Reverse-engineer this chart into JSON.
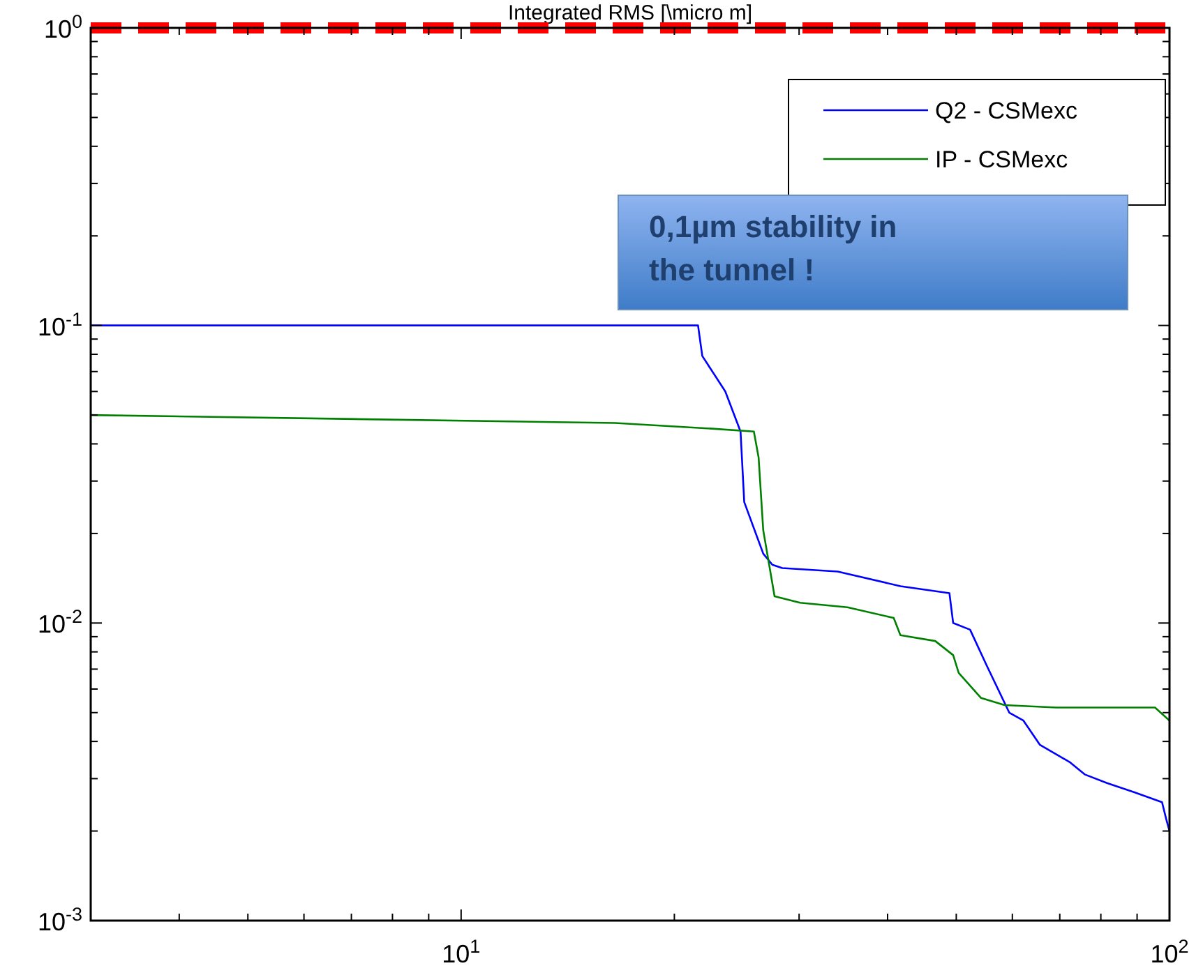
{
  "chart_data": {
    "type": "line",
    "title": "Integrated RMS [\\micro m]",
    "log": "xy",
    "legend": "top right",
    "xlim": [
      3,
      100
    ],
    "ylim": [
      0.001,
      1
    ],
    "xticks": [
      {
        "value": 4,
        "label": null
      },
      {
        "value": 5,
        "label": null
      },
      {
        "value": 6,
        "label": null
      },
      {
        "value": 7,
        "label": null
      },
      {
        "value": 8,
        "label": null
      },
      {
        "value": 9,
        "label": null
      },
      {
        "value": 10,
        "label": "10$^{1}$"
      },
      {
        "value": 20,
        "label": null
      },
      {
        "value": 30,
        "label": null
      },
      {
        "value": 40,
        "label": null
      },
      {
        "value": 50,
        "label": null
      },
      {
        "value": 60,
        "label": null
      },
      {
        "value": 70,
        "label": null
      },
      {
        "value": 80,
        "label": null
      },
      {
        "value": 90,
        "label": null
      },
      {
        "value": 100,
        "label": "10$^{2}$"
      }
    ],
    "yticks": [
      {
        "value": 0.001,
        "label": "10$^{-3}$"
      },
      {
        "value": 0.002,
        "label": null
      },
      {
        "value": 0.003,
        "label": null
      },
      {
        "value": 0.004,
        "label": null
      },
      {
        "value": 0.005,
        "label": null
      },
      {
        "value": 0.006,
        "label": null
      },
      {
        "value": 0.007,
        "label": null
      },
      {
        "value": 0.008,
        "label": null
      },
      {
        "value": 0.009,
        "label": null
      },
      {
        "value": 0.01,
        "label": "10$^{-2}$"
      },
      {
        "value": 0.02,
        "label": null
      },
      {
        "value": 0.03,
        "label": null
      },
      {
        "value": 0.04,
        "label": null
      },
      {
        "value": 0.05,
        "label": null
      },
      {
        "value": 0.06,
        "label": null
      },
      {
        "value": 0.07,
        "label": null
      },
      {
        "value": 0.08,
        "label": null
      },
      {
        "value": 0.09,
        "label": null
      },
      {
        "value": 0.1,
        "label": "10$^{-1}$"
      },
      {
        "value": 0.2,
        "label": null
      },
      {
        "value": 0.3,
        "label": null
      },
      {
        "value": 0.4,
        "label": null
      },
      {
        "value": 0.5,
        "label": null
      },
      {
        "value": 0.6,
        "label": null
      },
      {
        "value": 0.7,
        "label": null
      },
      {
        "value": 0.8,
        "label": null
      },
      {
        "value": 0.9,
        "label": null
      },
      {
        "value": 1,
        "label": "10$^{0}$"
      }
    ],
    "series": [
      {
        "name": "Q2 - CSMexc",
        "color": "#0000ff",
        "x": [
          3,
          21.6,
          21.9,
          23.6,
          24.8,
          25.1,
          26.7,
          27.5,
          28.4,
          34,
          41.7,
          48.9,
          49.5,
          52.3,
          55.2,
          59.4,
          62.2,
          65.6,
          72.4,
          75.9,
          81.6,
          89.2,
          97.6,
          98.9,
          100
        ],
        "values": [
          0.1,
          0.1,
          0.079,
          0.06,
          0.044,
          0.0255,
          0.0171,
          0.0157,
          0.0153,
          0.0149,
          0.0133,
          0.0126,
          0.01,
          0.0095,
          0.0072,
          0.005,
          0.0047,
          0.0039,
          0.0034,
          0.0031,
          0.0029,
          0.0027,
          0.0025,
          0.0022,
          0.002
        ]
      },
      {
        "name": "IP - CSMexc",
        "color": "#008000",
        "x": [
          3,
          16.5,
          22.6,
          25.9,
          26.3,
          26.7,
          27.7,
          30.1,
          35.1,
          40.8,
          41.7,
          46.7,
          49.5,
          50.4,
          54.2,
          58.5,
          69.2,
          95.4,
          100
        ],
        "values": [
          0.05,
          0.047,
          0.045,
          0.044,
          0.036,
          0.0205,
          0.0123,
          0.0117,
          0.0113,
          0.0104,
          0.0091,
          0.0087,
          0.0078,
          0.0068,
          0.0056,
          0.0053,
          0.0052,
          0.0052,
          0.0047
        ]
      }
    ],
    "ref_lines": [
      {
        "axis": "y",
        "value": 1,
        "color": "#ff0000",
        "line_style": "dashed"
      }
    ],
    "annotations": [
      "0,1µm stability in the tunnel !"
    ]
  }
}
